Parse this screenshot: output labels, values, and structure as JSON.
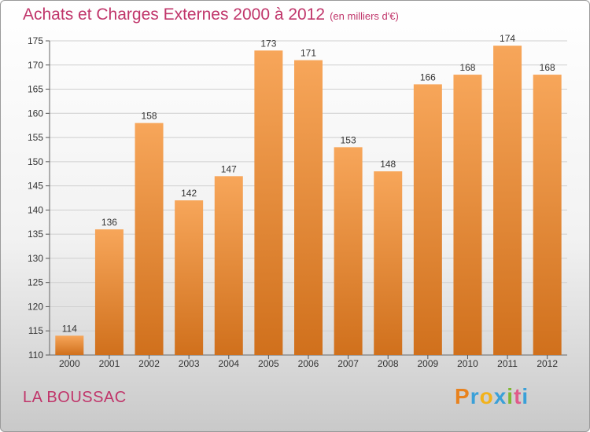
{
  "header": {
    "title": "Achats et Charges Externes 2000 à 2012",
    "unit": "(en milliers d'€)"
  },
  "footer": {
    "commune": "LA BOUSSAC",
    "logo_letters": [
      "P",
      "r",
      "o",
      "x",
      "i",
      "t",
      "i"
    ],
    "logo_colors": [
      "#e8821e",
      "#3aa0d8",
      "#f2b21b",
      "#3aa0d8",
      "#7fb832",
      "#e05a8a",
      "#3aa0d8"
    ]
  },
  "colors": {
    "title": "#c0356a",
    "bar_light": "#f7a65a",
    "bar_dark": "#d0701c",
    "grid": "#cfcfcf"
  },
  "chart_data": {
    "type": "bar",
    "title": "Achats et Charges Externes 2000 à 2012",
    "categories": [
      "2000",
      "2001",
      "2002",
      "2003",
      "2004",
      "2005",
      "2006",
      "2007",
      "2008",
      "2009",
      "2010",
      "2011",
      "2012"
    ],
    "values": [
      114,
      136,
      158,
      142,
      147,
      173,
      171,
      153,
      148,
      166,
      168,
      174,
      168
    ],
    "value_labels": [
      "114",
      "136",
      "158",
      "142",
      "147",
      "173",
      "171",
      "153",
      "148",
      "166",
      "168",
      "174",
      "168"
    ],
    "ylim": [
      110,
      175
    ],
    "yticks": [
      110,
      115,
      120,
      125,
      130,
      135,
      140,
      145,
      150,
      155,
      160,
      165,
      170,
      175
    ],
    "ytick_labels": [
      "110",
      "115",
      "120",
      "125",
      "130",
      "135",
      "140",
      "145",
      "150",
      "155",
      "160",
      "165",
      "170",
      "175"
    ],
    "xlabel": "",
    "ylabel": "",
    "grid": true
  }
}
